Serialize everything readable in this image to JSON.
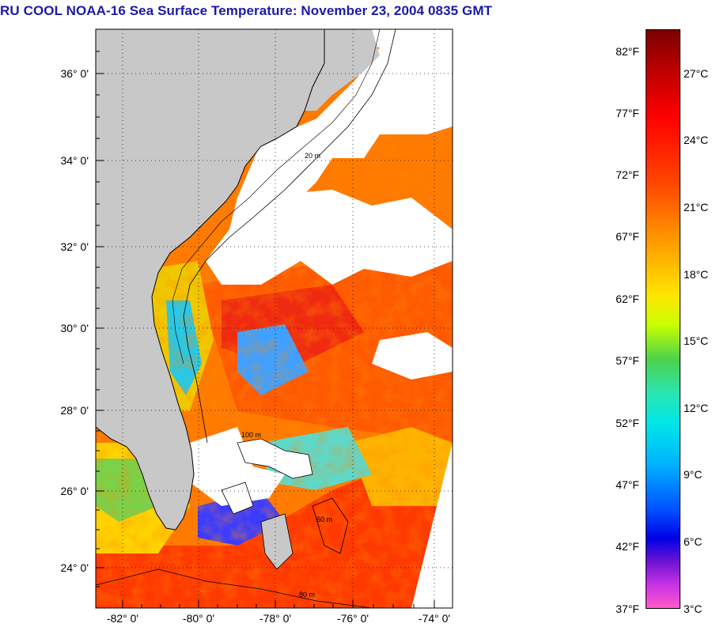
{
  "title": "RU COOL  NOAA-16  Sea Surface Temperature:  November 23, 2004 0835 GMT",
  "map": {
    "latitude_labels": [
      "36° 0'",
      "34° 0'",
      "32° 0'",
      "30° 0'",
      "28° 0'",
      "26° 0'",
      "24° 0'"
    ],
    "longitude_labels": [
      "-82° 0'",
      "-80° 0'",
      "-78° 0'",
      "-76° 0'",
      "-74° 0'"
    ],
    "contour_labels": [
      "100 m",
      "80 m",
      "20 m",
      "60 m"
    ],
    "colors": {
      "land": "#c8c8c8",
      "cloud": "#ffffff",
      "gulf_stream": "#ff3c00",
      "shelf_water": "#ff9a00"
    }
  },
  "colorbar": {
    "fahrenheit_labels": [
      "82°F",
      "77°F",
      "72°F",
      "67°F",
      "62°F",
      "57°F",
      "52°F",
      "47°F",
      "42°F",
      "37°F"
    ],
    "celsius_labels": [
      "27°C",
      "24°C",
      "21°C",
      "18°C",
      "15°C",
      "12°C",
      "9°C",
      "6°C",
      "3°C"
    ]
  }
}
